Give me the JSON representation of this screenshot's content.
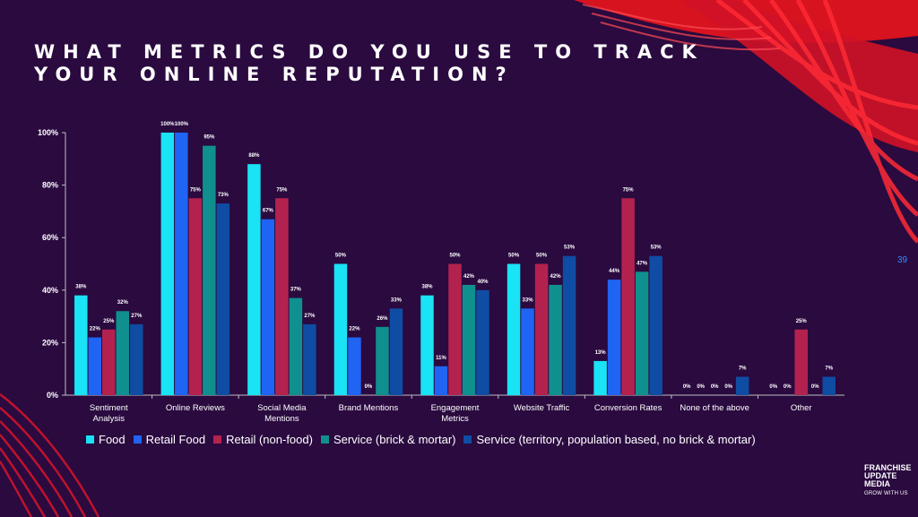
{
  "slide": {
    "title": "WHAT METRICS DO YOU USE TO TRACK YOUR ONLINE REPUTATION?",
    "page_number": "39",
    "logo": {
      "lines": [
        "FRANCHISE",
        "UPDATE",
        "MEDIA"
      ],
      "tagline": "GROW WITH US"
    },
    "colors": {
      "background": "#2a0a3f",
      "accent": "#e81a2a"
    }
  },
  "chart_data": {
    "type": "bar",
    "categories": [
      "Sentiment Analysis",
      "Online Reviews",
      "Social Media Mentions",
      "Brand Mentions",
      "Engagement Metrics",
      "Website Traffic",
      "Conversion Rates",
      "None of the above",
      "Other"
    ],
    "ylim": [
      0,
      100
    ],
    "yticks": [
      0,
      20,
      40,
      60,
      80,
      100
    ],
    "ytick_labels": [
      "0%",
      "20%",
      "40%",
      "60%",
      "80%",
      "100%"
    ],
    "legend_position": "bottom",
    "series": [
      {
        "name": "Food",
        "color": "#19e3f5",
        "values": [
          38,
          100,
          88,
          50,
          38,
          50,
          13,
          0,
          0
        ]
      },
      {
        "name": "Retail Food",
        "color": "#1f64f2",
        "values": [
          22,
          100,
          67,
          22,
          11,
          33,
          44,
          0,
          0
        ]
      },
      {
        "name": "Retail (non-food)",
        "color": "#b3224f",
        "values": [
          25,
          75,
          75,
          0,
          50,
          50,
          75,
          0,
          25
        ]
      },
      {
        "name": "Service (brick & mortar)",
        "color": "#108f8f",
        "values": [
          32,
          95,
          37,
          26,
          42,
          42,
          47,
          0,
          0
        ]
      },
      {
        "name": "Service (territory, population based, no brick & mortar)",
        "color": "#0f4ca3",
        "values": [
          27,
          73,
          27,
          33,
          40,
          53,
          53,
          7,
          7
        ]
      }
    ]
  }
}
